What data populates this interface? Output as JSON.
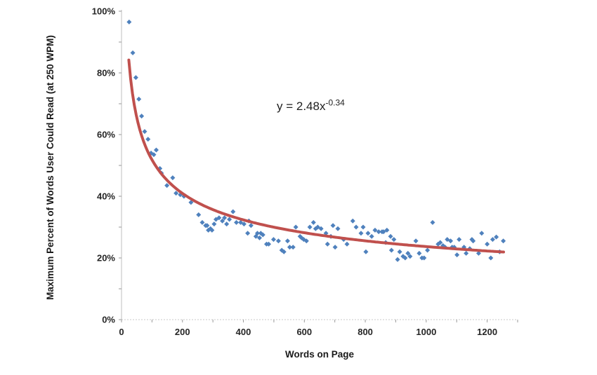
{
  "chart_data": {
    "type": "scatter",
    "title": "",
    "xlabel": "Words on Page",
    "ylabel": "Maximum Percent of Words User Could Read (at 250 WPM)",
    "xlim": [
      0,
      1300
    ],
    "ylim": [
      0,
      100
    ],
    "x_major_ticks": [
      0,
      200,
      400,
      600,
      800,
      1000,
      1200
    ],
    "x_minor_step": 100,
    "y_major_ticks_pct": [
      0,
      20,
      40,
      60,
      80,
      100
    ],
    "y_minor_step": 10,
    "grid": "none",
    "legend": "none",
    "marker": {
      "shape": "diamond",
      "color": "#4f81bd",
      "size": 7
    },
    "trendline": {
      "type": "power",
      "a": 2.48,
      "b": -0.34,
      "color": "#c0504d",
      "width": 4,
      "x_start": 24,
      "x_end": 1255
    },
    "equation": {
      "base": "y = 2.48x",
      "exponent": "-0.34"
    },
    "axis_colors": {
      "axis_line": "#bfbfbf",
      "baseline": "#c9c9c9",
      "tick": "#9a9a9a"
    },
    "points": [
      [
        25,
        96.5
      ],
      [
        37,
        86.5
      ],
      [
        47,
        78.5
      ],
      [
        57,
        71.5
      ],
      [
        66,
        66
      ],
      [
        76,
        61
      ],
      [
        87,
        58.5
      ],
      [
        97,
        54
      ],
      [
        106,
        53.5
      ],
      [
        114,
        55
      ],
      [
        126,
        49
      ],
      [
        131,
        47.5
      ],
      [
        149,
        43.5
      ],
      [
        168,
        46
      ],
      [
        179,
        41
      ],
      [
        193,
        40.5
      ],
      [
        205,
        40
      ],
      [
        228,
        38
      ],
      [
        253,
        34
      ],
      [
        265,
        31.5
      ],
      [
        276,
        30.5
      ],
      [
        281,
        30.5
      ],
      [
        285,
        29
      ],
      [
        292,
        29.5
      ],
      [
        297,
        29
      ],
      [
        304,
        31
      ],
      [
        310,
        32.5
      ],
      [
        320,
        33
      ],
      [
        331,
        32
      ],
      [
        338,
        33
      ],
      [
        345,
        31
      ],
      [
        354,
        32.5
      ],
      [
        366,
        35
      ],
      [
        377,
        31.5
      ],
      [
        391,
        31.5
      ],
      [
        402,
        31
      ],
      [
        414,
        28
      ],
      [
        418,
        32
      ],
      [
        425,
        30.5
      ],
      [
        441,
        27
      ],
      [
        446,
        28
      ],
      [
        453,
        26.5
      ],
      [
        457,
        28
      ],
      [
        464,
        27.5
      ],
      [
        476,
        24.5
      ],
      [
        483,
        24.5
      ],
      [
        499,
        26
      ],
      [
        515,
        25.5
      ],
      [
        526,
        22.5
      ],
      [
        533,
        22
      ],
      [
        545,
        25.5
      ],
      [
        552,
        23.5
      ],
      [
        563,
        23.5
      ],
      [
        572,
        30
      ],
      [
        586,
        27
      ],
      [
        591,
        26.5
      ],
      [
        598,
        26
      ],
      [
        607,
        25.5
      ],
      [
        618,
        30
      ],
      [
        630,
        31.5
      ],
      [
        637,
        29.5
      ],
      [
        644,
        30
      ],
      [
        655,
        29.5
      ],
      [
        671,
        28
      ],
      [
        676,
        24.5
      ],
      [
        687,
        27
      ],
      [
        694,
        30.5
      ],
      [
        701,
        23.5
      ],
      [
        710,
        29.5
      ],
      [
        729,
        26
      ],
      [
        740,
        24.5
      ],
      [
        759,
        32
      ],
      [
        770,
        30
      ],
      [
        786,
        28
      ],
      [
        793,
        30
      ],
      [
        802,
        22
      ],
      [
        809,
        28
      ],
      [
        821,
        27
      ],
      [
        832,
        29
      ],
      [
        844,
        28.5
      ],
      [
        855,
        28.5
      ],
      [
        860,
        28.5
      ],
      [
        867,
        25
      ],
      [
        871,
        29
      ],
      [
        883,
        27
      ],
      [
        886,
        22.5
      ],
      [
        894,
        26
      ],
      [
        906,
        19.5
      ],
      [
        913,
        22
      ],
      [
        924,
        20.5
      ],
      [
        931,
        20
      ],
      [
        940,
        21.5
      ],
      [
        947,
        20.5
      ],
      [
        966,
        25.5
      ],
      [
        977,
        21.5
      ],
      [
        986,
        20
      ],
      [
        993,
        20
      ],
      [
        1004,
        22.5
      ],
      [
        1021,
        31.5
      ],
      [
        1039,
        24.5
      ],
      [
        1046,
        25
      ],
      [
        1055,
        24
      ],
      [
        1062,
        23.5
      ],
      [
        1069,
        26
      ],
      [
        1080,
        25.5
      ],
      [
        1085,
        23.5
      ],
      [
        1092,
        23.5
      ],
      [
        1101,
        21
      ],
      [
        1108,
        26
      ],
      [
        1124,
        23.5
      ],
      [
        1131,
        21.5
      ],
      [
        1143,
        23
      ],
      [
        1150,
        26
      ],
      [
        1154,
        25.5
      ],
      [
        1172,
        21.5
      ],
      [
        1182,
        28
      ],
      [
        1200,
        24.5
      ],
      [
        1212,
        20
      ],
      [
        1218,
        26
      ],
      [
        1230,
        26.8
      ],
      [
        1241,
        22
      ],
      [
        1253,
        25.5
      ]
    ]
  }
}
